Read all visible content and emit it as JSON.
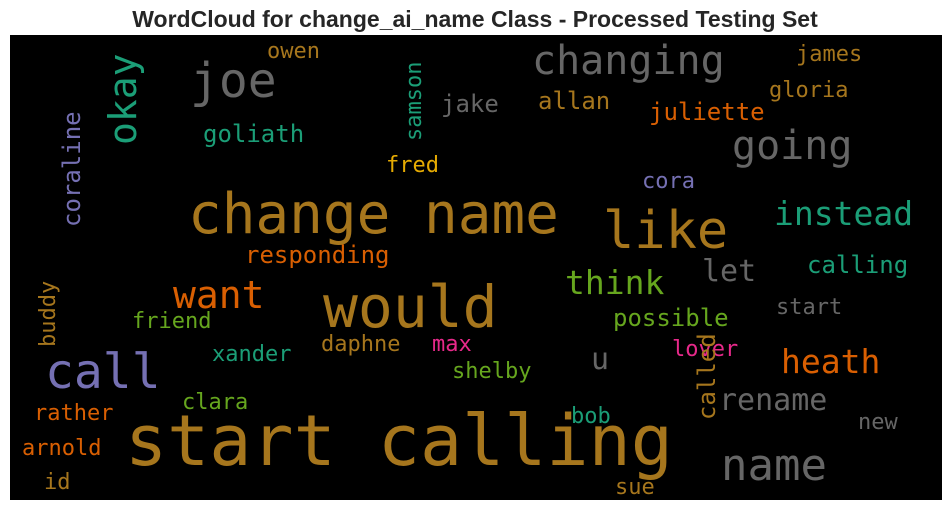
{
  "chart_data": {
    "type": "wordcloud",
    "title": "WordCloud for change_ai_name Class - Processed Testing Set",
    "background": "#000000",
    "words": [
      {
        "text": "start calling",
        "color": "#a6761d"
      },
      {
        "text": "would",
        "color": "#a6761d"
      },
      {
        "text": "change name",
        "color": "#a6761d"
      },
      {
        "text": "like",
        "color": "#a6761d"
      },
      {
        "text": "call",
        "color": "#7570b3"
      },
      {
        "text": "joe",
        "color": "#666666"
      },
      {
        "text": "name",
        "color": "#666666"
      },
      {
        "text": "changing",
        "color": "#666666"
      },
      {
        "text": "going",
        "color": "#666666"
      },
      {
        "text": "want",
        "color": "#d95f02"
      },
      {
        "text": "okay",
        "color": "#1b9e77"
      },
      {
        "text": "instead",
        "color": "#1b9e77"
      },
      {
        "text": "think",
        "color": "#66a61e"
      },
      {
        "text": "heath",
        "color": "#d95f02"
      },
      {
        "text": "rename",
        "color": "#666666"
      },
      {
        "text": "let",
        "color": "#666666"
      },
      {
        "text": "u",
        "color": "#666666"
      },
      {
        "text": "calling",
        "color": "#1b9e77"
      },
      {
        "text": "responding",
        "color": "#d95f02"
      },
      {
        "text": "coraline",
        "color": "#7570b3"
      },
      {
        "text": "possible",
        "color": "#66a61e"
      },
      {
        "text": "juliette",
        "color": "#d95f02"
      },
      {
        "text": "goliath",
        "color": "#1b9e77"
      },
      {
        "text": "allan",
        "color": "#a6761d"
      },
      {
        "text": "jake",
        "color": "#666666"
      },
      {
        "text": "samson",
        "color": "#1b9e77"
      },
      {
        "text": "owen",
        "color": "#a6761d"
      },
      {
        "text": "james",
        "color": "#a6761d"
      },
      {
        "text": "gloria",
        "color": "#a6761d"
      },
      {
        "text": "fred",
        "color": "#e6ab02"
      },
      {
        "text": "cora",
        "color": "#7570b3"
      },
      {
        "text": "start",
        "color": "#666666"
      },
      {
        "text": "friend",
        "color": "#66a61e"
      },
      {
        "text": "xander",
        "color": "#1b9e77"
      },
      {
        "text": "daphne",
        "color": "#a6761d"
      },
      {
        "text": "max",
        "color": "#e7298a"
      },
      {
        "text": "lover",
        "color": "#e7298a"
      },
      {
        "text": "shelby",
        "color": "#66a61e"
      },
      {
        "text": "called",
        "color": "#a6761d"
      },
      {
        "text": "buddy",
        "color": "#a6761d"
      },
      {
        "text": "clara",
        "color": "#66a61e"
      },
      {
        "text": "rather",
        "color": "#d95f02"
      },
      {
        "text": "bob",
        "color": "#1b9e77"
      },
      {
        "text": "new",
        "color": "#666666"
      },
      {
        "text": "arnold",
        "color": "#d95f02"
      },
      {
        "text": "id",
        "color": "#a6761d"
      },
      {
        "text": "sue",
        "color": "#a6761d"
      }
    ]
  }
}
